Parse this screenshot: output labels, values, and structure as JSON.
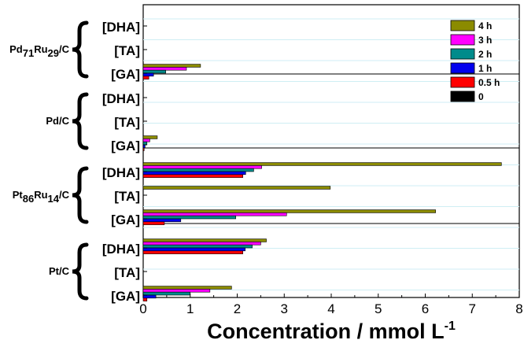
{
  "chart_data": {
    "type": "bar",
    "orientation": "horizontal",
    "xlabel": "Concentration / mmol L",
    "xlabel_superscript": "-1",
    "xlim": [
      0,
      8
    ],
    "xticks": [
      0,
      1,
      2,
      3,
      4,
      5,
      6,
      7,
      8
    ],
    "grid": true,
    "legend_position": "top-right",
    "series": [
      {
        "name": "4 h",
        "color": "#8b8b00"
      },
      {
        "name": "3 h",
        "color": "#ff00ff"
      },
      {
        "name": "2 h",
        "color": "#008b8b"
      },
      {
        "name": "1 h",
        "color": "#0000ee"
      },
      {
        "name": "0.5 h",
        "color": "#ff0000"
      },
      {
        "name": "0",
        "color": "#000000"
      }
    ],
    "groups": [
      {
        "catalyst": {
          "base": "Pd",
          "sub1": "71",
          "mid": "Ru",
          "sub2": "29",
          "tail": "/C"
        },
        "products": [
          {
            "label": "[DHA]",
            "values": [
              0,
              0,
              0,
              0,
              0,
              0
            ]
          },
          {
            "label": "[TA]",
            "values": [
              0,
              0,
              0,
              0,
              0,
              0
            ]
          },
          {
            "label": "[GA]",
            "values": [
              1.22,
              0.92,
              0.48,
              0.22,
              0.12,
              0
            ]
          }
        ]
      },
      {
        "catalyst": {
          "base": "Pd/C",
          "sub1": "",
          "mid": "",
          "sub2": "",
          "tail": ""
        },
        "products": [
          {
            "label": "[DHA]",
            "values": [
              0,
              0,
              0,
              0,
              0,
              0
            ]
          },
          {
            "label": "[TA]",
            "values": [
              0,
              0,
              0,
              0,
              0,
              0
            ]
          },
          {
            "label": "[GA]",
            "values": [
              0.3,
              0.14,
              0.08,
              0.04,
              0.02,
              0
            ]
          }
        ]
      },
      {
        "catalyst": {
          "base": "Pt",
          "sub1": "86",
          "mid": "Ru",
          "sub2": "14",
          "tail": "/C"
        },
        "products": [
          {
            "label": "[DHA]",
            "values": [
              7.62,
              2.52,
              2.35,
              2.18,
              2.12,
              0
            ]
          },
          {
            "label": "[TA]",
            "values": [
              3.98,
              0,
              0,
              0,
              0,
              0
            ]
          },
          {
            "label": "[GA]",
            "values": [
              6.22,
              3.05,
              1.97,
              0.8,
              0.45,
              0
            ]
          }
        ]
      },
      {
        "catalyst": {
          "base": "Pt/C",
          "sub1": "",
          "mid": "",
          "sub2": "",
          "tail": ""
        },
        "products": [
          {
            "label": "[DHA]",
            "values": [
              2.62,
              2.5,
              2.32,
              2.17,
              2.12,
              0
            ]
          },
          {
            "label": "[TA]",
            "values": [
              0,
              0,
              0,
              0,
              0,
              0
            ]
          },
          {
            "label": "[GA]",
            "values": [
              1.88,
              1.42,
              1.0,
              0.27,
              0.08,
              0
            ]
          }
        ]
      }
    ]
  }
}
